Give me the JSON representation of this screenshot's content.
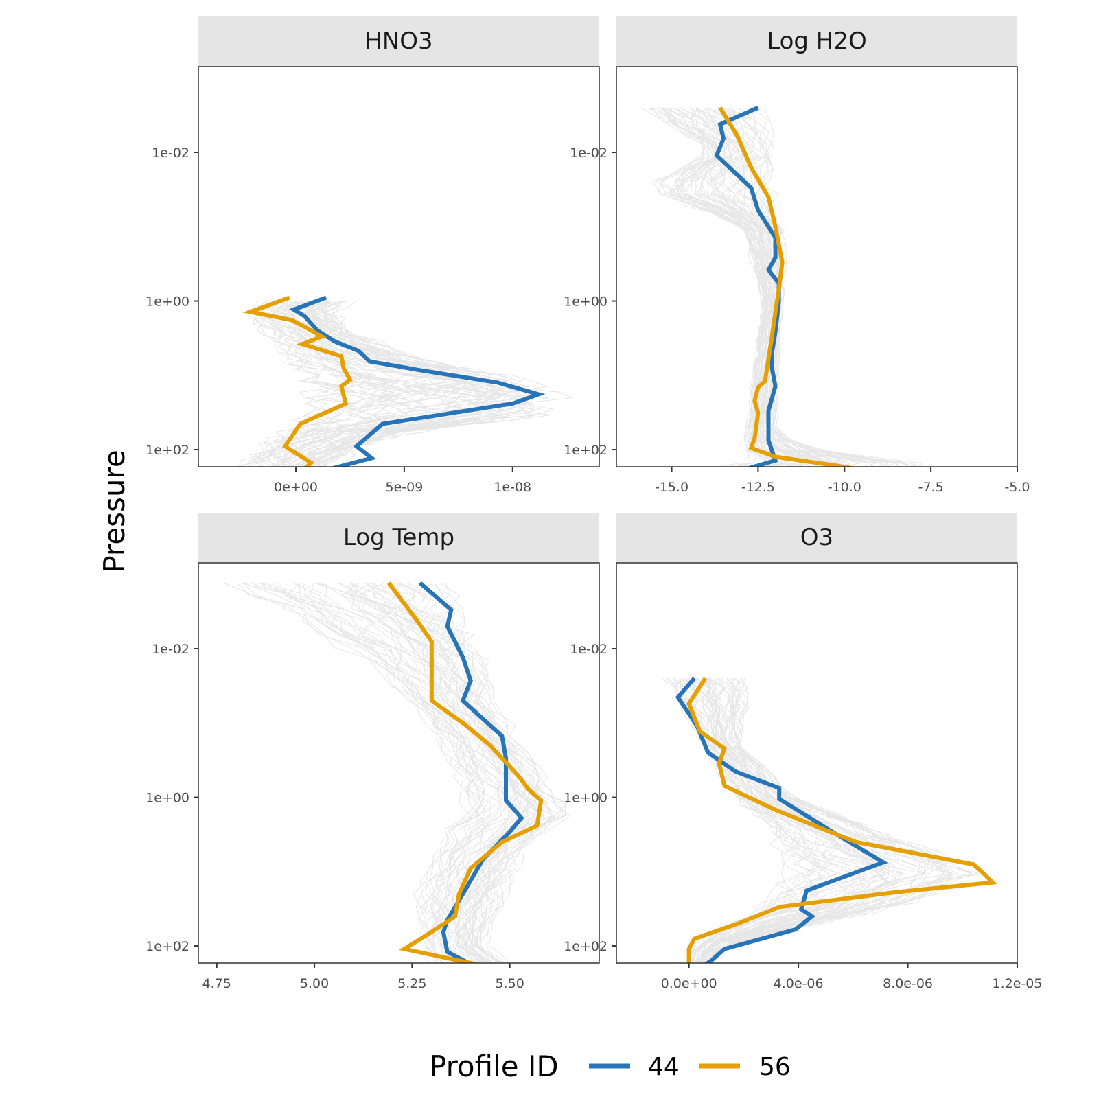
{
  "chart_data": [
    {
      "type": "line",
      "panel": "HNO3",
      "title": "HNO3",
      "ylabel": "Pressure",
      "yscale": "log",
      "yreverse": true,
      "ylim": [
        0.0007,
        170
      ],
      "yticks": [
        {
          "v": 0.01,
          "label": "1e-02"
        },
        {
          "v": 1,
          "label": "1e+00"
        },
        {
          "v": 100,
          "label": "1e+02"
        }
      ],
      "xlim": [
        -4.5e-09,
        1.4e-08
      ],
      "xticks": [
        {
          "v": 0,
          "label": "0e+00"
        },
        {
          "v": 5e-09,
          "label": "5e-09"
        },
        {
          "v": 1e-08,
          "label": "1e-08"
        }
      ],
      "background_envelope": {
        "upper": [
          [
            1.0,
            2.8e-09
          ],
          [
            1.5,
            2.2e-09
          ],
          [
            3.0,
            3.6e-09
          ],
          [
            6.0,
            6.5e-09
          ],
          [
            12.0,
            1.2e-08
          ],
          [
            20.0,
            1.3e-08
          ],
          [
            35.0,
            1.25e-08
          ],
          [
            60.0,
            6e-09
          ],
          [
            100.0,
            3.2e-09
          ],
          [
            200.0,
            1.8e-09
          ]
        ],
        "lower": [
          [
            1.0,
            -1.8e-09
          ],
          [
            1.5,
            -2.7e-09
          ],
          [
            3.0,
            -1.8e-09
          ],
          [
            6.0,
            -1e-09
          ],
          [
            12.0,
            -5e-10
          ],
          [
            20.0,
            -1e-10
          ],
          [
            35.0,
            -6e-10
          ],
          [
            60.0,
            -1.5e-09
          ],
          [
            100.0,
            -2.2e-09
          ],
          [
            200.0,
            -3.3e-09
          ]
        ]
      },
      "series": [
        {
          "name": "44",
          "color": "#2874b8",
          "points": [
            [
              0.9,
              1.4e-09
            ],
            [
              1.3,
              -1e-10
            ],
            [
              1.6,
              4e-10
            ],
            [
              2.5,
              1e-09
            ],
            [
              3.5,
              1.8e-09
            ],
            [
              4.7,
              2.9e-09
            ],
            [
              6.5,
              3.4e-09
            ],
            [
              8.5,
              5.7e-09
            ],
            [
              12.5,
              9.3e-09
            ],
            [
              18.0,
              1.12e-08
            ],
            [
              24.0,
              1e-08
            ],
            [
              45.0,
              4e-09
            ],
            [
              90.0,
              2.8e-09
            ],
            [
              130.0,
              3.5e-09
            ],
            [
              220.0,
              5e-10
            ]
          ]
        },
        {
          "name": "56",
          "color": "#e69f00",
          "points": [
            [
              0.9,
              -3e-10
            ],
            [
              1.4,
              -2.1e-09
            ],
            [
              1.8,
              -2e-10
            ],
            [
              2.3,
              5e-10
            ],
            [
              3.0,
              1.2e-09
            ],
            [
              3.8,
              3e-10
            ],
            [
              5.5,
              2.1e-09
            ],
            [
              8.0,
              2.2e-09
            ],
            [
              11.5,
              2.5e-09
            ],
            [
              14.0,
              2.1e-09
            ],
            [
              24.0,
              2.3e-09
            ],
            [
              45.0,
              2e-10
            ],
            [
              90.0,
              -5e-10
            ],
            [
              150.0,
              7e-10
            ],
            [
              210.0,
              2e-10
            ]
          ]
        }
      ]
    },
    {
      "type": "line",
      "panel": "Log H2O",
      "title": "Log H2O",
      "yscale": "log",
      "yreverse": true,
      "ylim": [
        0.0007,
        170
      ],
      "yticks": [
        {
          "v": 0.01,
          "label": "1e-02"
        },
        {
          "v": 1,
          "label": "1e+00"
        },
        {
          "v": 100,
          "label": "1e+02"
        }
      ],
      "xlim": [
        -16.6,
        -5.0
      ],
      "xticks": [
        {
          "v": -15,
          "label": "-15.0"
        },
        {
          "v": -12.5,
          "label": "-12.5"
        },
        {
          "v": -10,
          "label": "-10.0"
        },
        {
          "v": -7.5,
          "label": "-7.5"
        },
        {
          "v": -5,
          "label": "-5.0"
        }
      ],
      "background_envelope": {
        "upper": [
          [
            0.0025,
            -11.9
          ],
          [
            0.01,
            -11.8
          ],
          [
            0.1,
            -11.6
          ],
          [
            1.0,
            -11.7
          ],
          [
            10.0,
            -11.8
          ],
          [
            60.0,
            -11.9
          ],
          [
            100.0,
            -10.5
          ],
          [
            150.0,
            -7.0
          ],
          [
            220.0,
            -5.5
          ]
        ],
        "lower": [
          [
            0.0025,
            -16.1
          ],
          [
            0.01,
            -14.0
          ],
          [
            0.03,
            -16.1
          ],
          [
            0.1,
            -13.0
          ],
          [
            1.0,
            -12.4
          ],
          [
            10.0,
            -12.7
          ],
          [
            60.0,
            -12.9
          ],
          [
            100.0,
            -13.0
          ],
          [
            150.0,
            -13.2
          ],
          [
            220.0,
            -16.1
          ]
        ]
      },
      "series": [
        {
          "name": "44",
          "color": "#2874b8",
          "points": [
            [
              0.0025,
              -12.5
            ],
            [
              0.0042,
              -13.6
            ],
            [
              0.0065,
              -13.5
            ],
            [
              0.011,
              -13.7
            ],
            [
              0.03,
              -12.7
            ],
            [
              0.06,
              -12.5
            ],
            [
              0.14,
              -12.0
            ],
            [
              0.26,
              -12.0
            ],
            [
              0.38,
              -12.2
            ],
            [
              0.58,
              -11.9
            ],
            [
              1.05,
              -11.9
            ],
            [
              2.6,
              -12.0
            ],
            [
              5.0,
              -12.1
            ],
            [
              8.0,
              -12.1
            ],
            [
              14.0,
              -12.0
            ],
            [
              30.0,
              -12.2
            ],
            [
              75.0,
              -12.2
            ],
            [
              140.0,
              -12.0
            ],
            [
              185.0,
              -12.9
            ],
            [
              225.0,
              -10.6
            ]
          ]
        },
        {
          "name": "56",
          "color": "#e69f00",
          "points": [
            [
              0.0025,
              -13.6
            ],
            [
              0.006,
              -13.1
            ],
            [
              0.016,
              -12.7
            ],
            [
              0.04,
              -12.2
            ],
            [
              0.1,
              -12.0
            ],
            [
              0.3,
              -11.8
            ],
            [
              0.7,
              -11.9
            ],
            [
              1.4,
              -12.0
            ],
            [
              3.0,
              -12.1
            ],
            [
              6.0,
              -12.2
            ],
            [
              12.0,
              -12.3
            ],
            [
              14.5,
              -12.5
            ],
            [
              22.0,
              -12.6
            ],
            [
              32.0,
              -12.5
            ],
            [
              70.0,
              -12.6
            ],
            [
              95.0,
              -12.7
            ],
            [
              125.0,
              -12.0
            ],
            [
              165.0,
              -10.2
            ],
            [
              225.0,
              -8.4
            ]
          ]
        }
      ]
    },
    {
      "type": "line",
      "panel": "Log Temp",
      "title": "Log Temp",
      "yscale": "log",
      "yreverse": true,
      "ylim": [
        0.0007,
        170
      ],
      "yticks": [
        {
          "v": 0.01,
          "label": "1e-02"
        },
        {
          "v": 1,
          "label": "1e+00"
        },
        {
          "v": 100,
          "label": "1e+02"
        }
      ],
      "xlim": [
        4.703,
        5.729
      ],
      "xticks": [
        {
          "v": 4.75,
          "label": "4.75"
        },
        {
          "v": 5.0,
          "label": "5.00"
        },
        {
          "v": 5.25,
          "label": "5.25"
        },
        {
          "v": 5.5,
          "label": "5.50"
        }
      ],
      "background_envelope": {
        "upper": [
          [
            0.0013,
            5.36
          ],
          [
            0.01,
            5.45
          ],
          [
            0.05,
            5.48
          ],
          [
            0.2,
            5.55
          ],
          [
            1.0,
            5.64
          ],
          [
            1.6,
            5.68
          ],
          [
            5.0,
            5.56
          ],
          [
            20.0,
            5.5
          ],
          [
            100.0,
            5.45
          ],
          [
            220.0,
            5.55
          ]
        ],
        "lower": [
          [
            0.0013,
            4.75
          ],
          [
            0.005,
            4.95
          ],
          [
            0.02,
            5.15
          ],
          [
            0.15,
            5.3
          ],
          [
            1.0,
            5.38
          ],
          [
            5.0,
            5.3
          ],
          [
            20.0,
            5.25
          ],
          [
            100.0,
            5.27
          ],
          [
            220.0,
            5.3
          ]
        ]
      },
      "series": [
        {
          "name": "44",
          "color": "#2874b8",
          "points": [
            [
              0.0013,
              5.27
            ],
            [
              0.003,
              5.35
            ],
            [
              0.005,
              5.34
            ],
            [
              0.013,
              5.38
            ],
            [
              0.027,
              5.4
            ],
            [
              0.05,
              5.38
            ],
            [
              0.15,
              5.48
            ],
            [
              0.3,
              5.49
            ],
            [
              1.1,
              5.49
            ],
            [
              1.9,
              5.53
            ],
            [
              2.9,
              5.5
            ],
            [
              7.0,
              5.43
            ],
            [
              20.0,
              5.38
            ],
            [
              45.0,
              5.34
            ],
            [
              65.0,
              5.33
            ],
            [
              120.0,
              5.34
            ],
            [
              165.0,
              5.39
            ],
            [
              230.0,
              5.35
            ]
          ]
        },
        {
          "name": "56",
          "color": "#e69f00",
          "points": [
            [
              0.0013,
              5.19
            ],
            [
              0.004,
              5.26
            ],
            [
              0.008,
              5.3
            ],
            [
              0.05,
              5.3
            ],
            [
              0.1,
              5.38
            ],
            [
              0.2,
              5.45
            ],
            [
              0.5,
              5.52
            ],
            [
              0.8,
              5.55
            ],
            [
              1.1,
              5.58
            ],
            [
              2.4,
              5.57
            ],
            [
              4.0,
              5.48
            ],
            [
              9.0,
              5.4
            ],
            [
              20.0,
              5.37
            ],
            [
              40.0,
              5.36
            ],
            [
              70.0,
              5.29
            ],
            [
              110.0,
              5.23
            ],
            [
              220.0,
              5.5
            ]
          ]
        }
      ]
    },
    {
      "type": "line",
      "panel": "O3",
      "title": "O3",
      "yscale": "log",
      "yreverse": true,
      "ylim": [
        0.0007,
        170
      ],
      "yticks": [
        {
          "v": 0.01,
          "label": "1e-02"
        },
        {
          "v": 1,
          "label": "1e+00"
        },
        {
          "v": 100,
          "label": "1e+02"
        }
      ],
      "xlim": [
        -2.65e-06,
        1.2e-05
      ],
      "xticks": [
        {
          "v": 0,
          "label": "0.0e+00"
        },
        {
          "v": 4e-06,
          "label": "4.0e-06"
        },
        {
          "v": 8e-06,
          "label": "8.0e-06"
        },
        {
          "v": 1.2e-05,
          "label": "1.2e-05"
        }
      ],
      "background_envelope": {
        "upper": [
          [
            0.025,
            2.3e-06
          ],
          [
            0.06,
            2.3e-06
          ],
          [
            0.2,
            2e-06
          ],
          [
            1.0,
            4e-06
          ],
          [
            3.0,
            7.5e-06
          ],
          [
            10.0,
            1.13e-05
          ],
          [
            25.0,
            9e-06
          ],
          [
            60.0,
            4e-06
          ],
          [
            100.0,
            1.4e-06
          ],
          [
            220.0,
            6e-07
          ]
        ],
        "lower": [
          [
            0.025,
            -1.1e-06
          ],
          [
            0.06,
            -4e-07
          ],
          [
            0.2,
            4e-07
          ],
          [
            1.0,
            1.5e-06
          ],
          [
            3.0,
            2.6e-06
          ],
          [
            10.0,
            3.3e-06
          ],
          [
            25.0,
            2.6e-06
          ],
          [
            60.0,
            8e-07
          ],
          [
            100.0,
            0.0
          ],
          [
            220.0,
            0.0
          ]
        ]
      },
      "series": [
        {
          "name": "44",
          "color": "#2874b8",
          "points": [
            [
              0.025,
              2e-07
            ],
            [
              0.045,
              -4e-07
            ],
            [
              0.11,
              3e-07
            ],
            [
              0.25,
              7e-07
            ],
            [
              0.45,
              1.7e-06
            ],
            [
              0.75,
              3.3e-06
            ],
            [
              1.05,
              3.3e-06
            ],
            [
              3.0,
              5.3e-06
            ],
            [
              7.5,
              7.1e-06
            ],
            [
              18.0,
              4.3e-06
            ],
            [
              32.0,
              4.1e-06
            ],
            [
              40.0,
              4.5e-06
            ],
            [
              60.0,
              3.9e-06
            ],
            [
              110.0,
              1.3e-06
            ],
            [
              160.0,
              8e-07
            ],
            [
              230.0,
              1e-07
            ]
          ]
        },
        {
          "name": "56",
          "color": "#e69f00",
          "points": [
            [
              0.025,
              6e-07
            ],
            [
              0.055,
              0.0
            ],
            [
              0.13,
              4e-07
            ],
            [
              0.22,
              1.3e-06
            ],
            [
              0.35,
              1.1e-06
            ],
            [
              0.7,
              1.3e-06
            ],
            [
              1.5,
              3.2e-06
            ],
            [
              4.0,
              6.1e-06
            ],
            [
              8.0,
              1.04e-05
            ],
            [
              10.0,
              1.07e-05
            ],
            [
              14.0,
              1.11e-05
            ],
            [
              19.0,
              7.5e-06
            ],
            [
              30.0,
              3.3e-06
            ],
            [
              50.0,
              1.8e-06
            ],
            [
              80.0,
              2e-07
            ],
            [
              110.0,
              0.0
            ],
            [
              160.0,
              0.0
            ],
            [
              220.0,
              0.0
            ]
          ]
        }
      ]
    }
  ],
  "ylabel": "Pressure",
  "legend": {
    "title": "Profile ID",
    "position": "bottom",
    "items": [
      {
        "label": "44",
        "color": "#2874b8"
      },
      {
        "label": "56",
        "color": "#e69f00"
      }
    ]
  },
  "colors": {
    "strip_bg": "#e5e5e5",
    "panel_border": "#333333",
    "background_lines": "#e6e6e6"
  }
}
